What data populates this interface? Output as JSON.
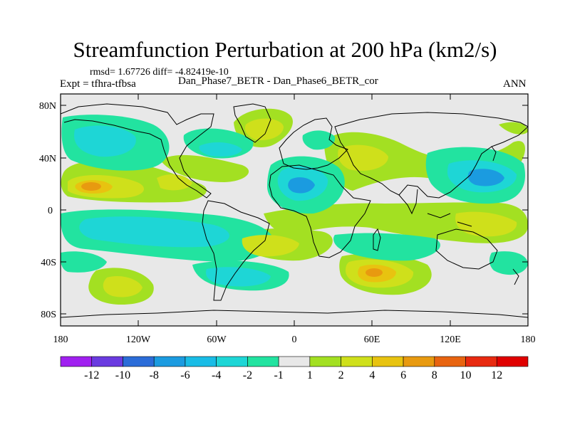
{
  "title": "Streamfunction Perturbation at 200 hPa (km2/s)",
  "stats_line": "rmsd= 1.67726 diff= -4.82419e-10",
  "experiment": "Expt = tfhra-tfbsa",
  "cases": "Dan_Phase7_BETR - Dan_Phase6_BETR_cor",
  "season": "ANN",
  "lat_ticks": [
    "80N",
    "40N",
    "0",
    "40S",
    "80S"
  ],
  "lon_ticks": [
    "180",
    "120W",
    "60W",
    "0",
    "60E",
    "120E",
    "180"
  ],
  "colorbar": {
    "labels": [
      "-12",
      "-10",
      "-8",
      "-6",
      "-4",
      "-2",
      "-1",
      "1",
      "2",
      "4",
      "6",
      "8",
      "10",
      "12"
    ],
    "colors": [
      "#a020f0",
      "#6a3be0",
      "#2b6cd8",
      "#1b9be0",
      "#19bce6",
      "#1ed6d6",
      "#22e3a0",
      "#e8e8e8",
      "#a3e022",
      "#cfe01b",
      "#e8c310",
      "#e89a10",
      "#e86410",
      "#e82a10",
      "#e00000"
    ]
  },
  "colors": {
    "neutral": "#e8e8e8",
    "coast": "#000000"
  }
}
